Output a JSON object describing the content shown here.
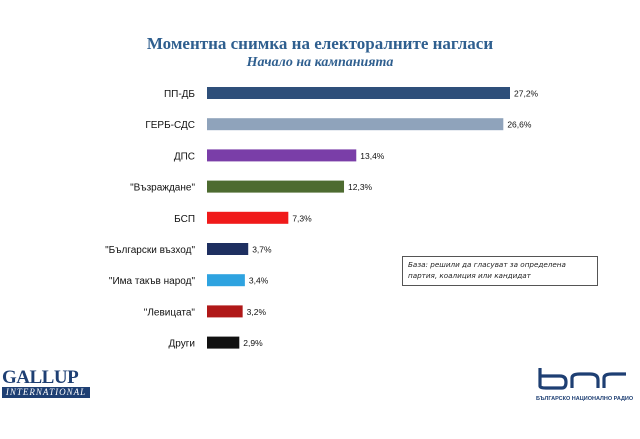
{
  "header": {
    "title": "Моментна снимка на електоралните нагласи",
    "subtitle": "Начало на кампанията"
  },
  "chart_data": {
    "type": "bar",
    "orientation": "horizontal",
    "categories": [
      "ПП-ДБ",
      "ГЕРБ-СДС",
      "ДПС",
      "\"Възраждане\"",
      "БСП",
      "\"Български възход\"",
      "\"Има такъв народ\"",
      "\"Левицата\"",
      "Други"
    ],
    "values": [
      27.2,
      26.6,
      13.4,
      12.3,
      7.3,
      3.7,
      3.4,
      3.2,
      2.9
    ],
    "value_labels": [
      "27,2%",
      "26,6%",
      "13,4%",
      "12,3%",
      "7,3%",
      "3,7%",
      "3,4%",
      "3,2%",
      "2,9%"
    ],
    "colors": [
      "#2e4f7a",
      "#8fa3bb",
      "#7a3ea8",
      "#4d6b30",
      "#f01a1a",
      "#1e2f60",
      "#2ea3e0",
      "#b01818",
      "#111111"
    ],
    "title": "Моментна снимка на електоралните нагласи",
    "subtitle": "Начало на кампанията",
    "xlim": [
      0,
      27.2
    ],
    "grid": false,
    "annotation": "База: решили да гласуват за определена партия, коалиция или кандидат"
  },
  "logos": {
    "gallup_line1": "GALLUP",
    "gallup_line2": "INTERNATIONAL",
    "bnr_name": "бнр",
    "bnr_sub": "БЪЛГАРСКО НАЦИОНАЛНО РАДИО"
  }
}
